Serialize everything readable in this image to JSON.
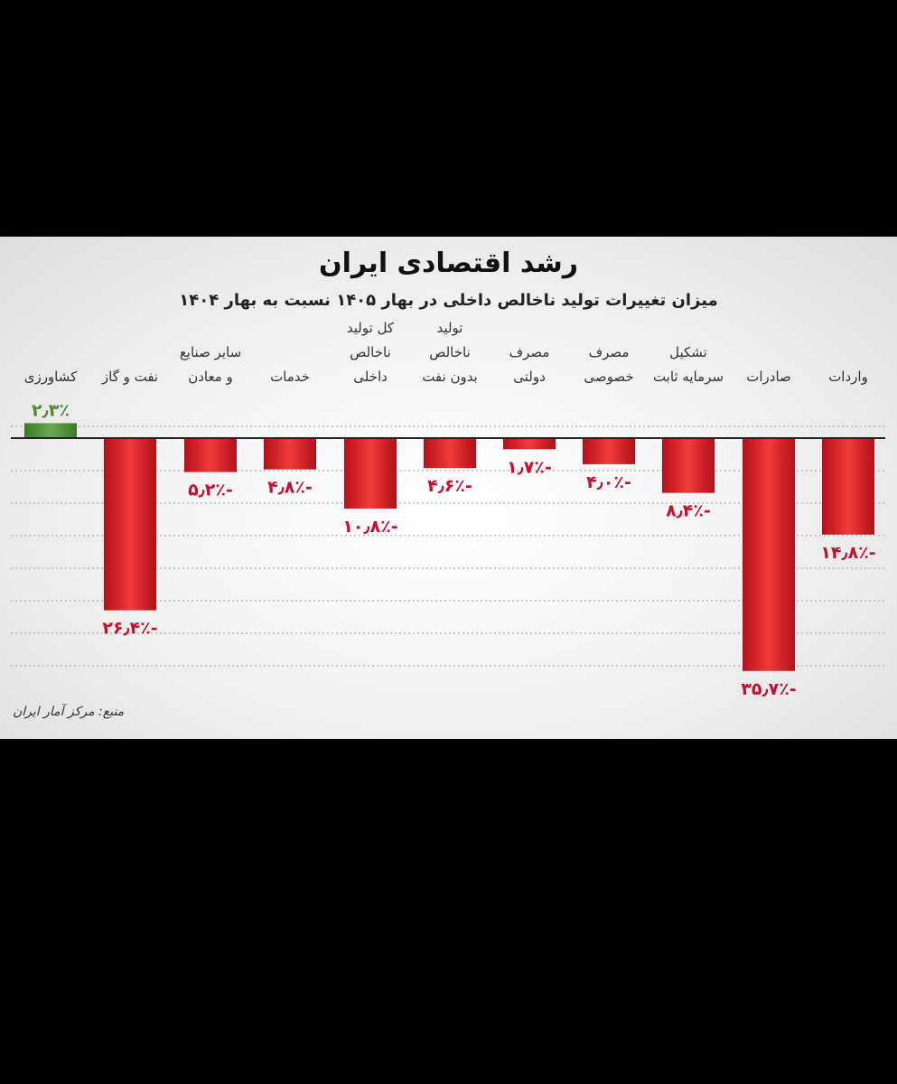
{
  "chart_data": {
    "type": "bar",
    "title": "رشد اقتصادی ایران",
    "subtitle": "میزان تغییرات تولید ناخالص داخلی در بهار ۱۴۰۵ نسبت به بهار ۱۴۰۴",
    "source": "منبع: مرکز آمار ایران",
    "grid": true,
    "categories": [
      [
        "کشاورزی"
      ],
      [
        "نفت و گاز"
      ],
      [
        "سایر صنایع",
        "و معادن"
      ],
      [
        "خدمات"
      ],
      [
        "کل تولید",
        "ناخالص",
        "داخلی"
      ],
      [
        "تولید",
        "ناخالص",
        "بدون نفت"
      ],
      [
        "مصرف",
        "دولتی"
      ],
      [
        "مصرف",
        "خصوصی"
      ],
      [
        "تشکیل",
        "سرمایه ثابت"
      ],
      [
        "صادرات"
      ],
      [
        "واردات"
      ]
    ],
    "values": [
      2.3,
      -26.4,
      -5.2,
      -4.8,
      -10.8,
      -4.6,
      -1.7,
      -4.0,
      -8.4,
      -35.7,
      -14.8
    ],
    "value_labels": [
      "۲٫۳٪",
      "-۲۶٫۴٪",
      "-۵٫۲٪",
      "-۴٫۸٪",
      "-۱۰٫۸٪",
      "-۴٫۶٪",
      "-۱٫۷٪",
      "-۴٫۰٪",
      "-۸٫۴٪",
      "-۳۵٫۷٪",
      "-۱۴٫۸٪"
    ],
    "ylim": [
      -38,
      3
    ],
    "colors": {
      "positive": "#4f8a35",
      "negative": "#d81e1e",
      "positive_label": "#4f8a35",
      "negative_label": "#c8102e"
    }
  }
}
